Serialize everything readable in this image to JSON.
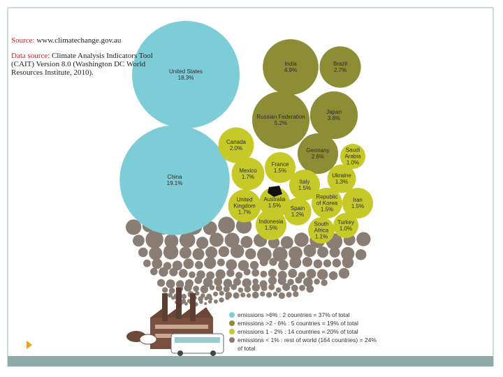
{
  "chart_data": {
    "type": "packed_bubble",
    "source": {
      "label": "Source:",
      "text": "www.climatechange.gov.au"
    },
    "data_source": {
      "label": "Data source:",
      "text": "Climate Analysis Indicators Tool (CAIT) Version 8.0 (Washington DC World Resources Institute, 2010)."
    },
    "series": [
      {
        "name": "emissions >6% :      2 countries = 37% of total",
        "color": "#7ccdd8",
        "categories": [
          "United States",
          "China"
        ],
        "values": [
          18.3,
          19.1
        ],
        "value_labels": [
          "18.3%",
          "19.1%"
        ]
      },
      {
        "name": "emissions >2 - 6% : 5 countries = 19% of total",
        "color": "#8d8d35",
        "categories": [
          "India",
          "Brazil",
          "Russian Federation",
          "Japan",
          "Germany"
        ],
        "values": [
          4.9,
          2.7,
          5.2,
          3.6,
          2.6
        ],
        "value_labels": [
          "4.9%",
          "2.7%",
          "5.2%",
          "3.6%",
          "2.6%"
        ]
      },
      {
        "name": "emissions 1 - 2% : 14 countries = 20% of total",
        "color": "#c6c928",
        "categories": [
          "Canada",
          "Saudi Arabia",
          "France",
          "Mexico",
          "Italy",
          "Ukraine",
          "Australia",
          "Iran",
          "United Kingdom",
          "Republic of Korea",
          "Spain",
          "Indonesia",
          "South Africa",
          "Turkey"
        ],
        "values": [
          2.0,
          1.0,
          1.5,
          1.7,
          1.5,
          1.3,
          1.5,
          1.5,
          1.7,
          1.5,
          1.2,
          1.5,
          1.1,
          1.0
        ],
        "value_labels": [
          "2.0%",
          "1.0%",
          "1.5%",
          "1.7%",
          "1.5%",
          "1.3%",
          "1.5%",
          "1.5%",
          "1.7%",
          "1.5%",
          "1.2%",
          "1.5%",
          "1.1%",
          "1.0%"
        ]
      },
      {
        "name": "emissions < 1% : rest of world (164 countries) = 24% of total",
        "color": "#8a7e74"
      }
    ]
  }
}
